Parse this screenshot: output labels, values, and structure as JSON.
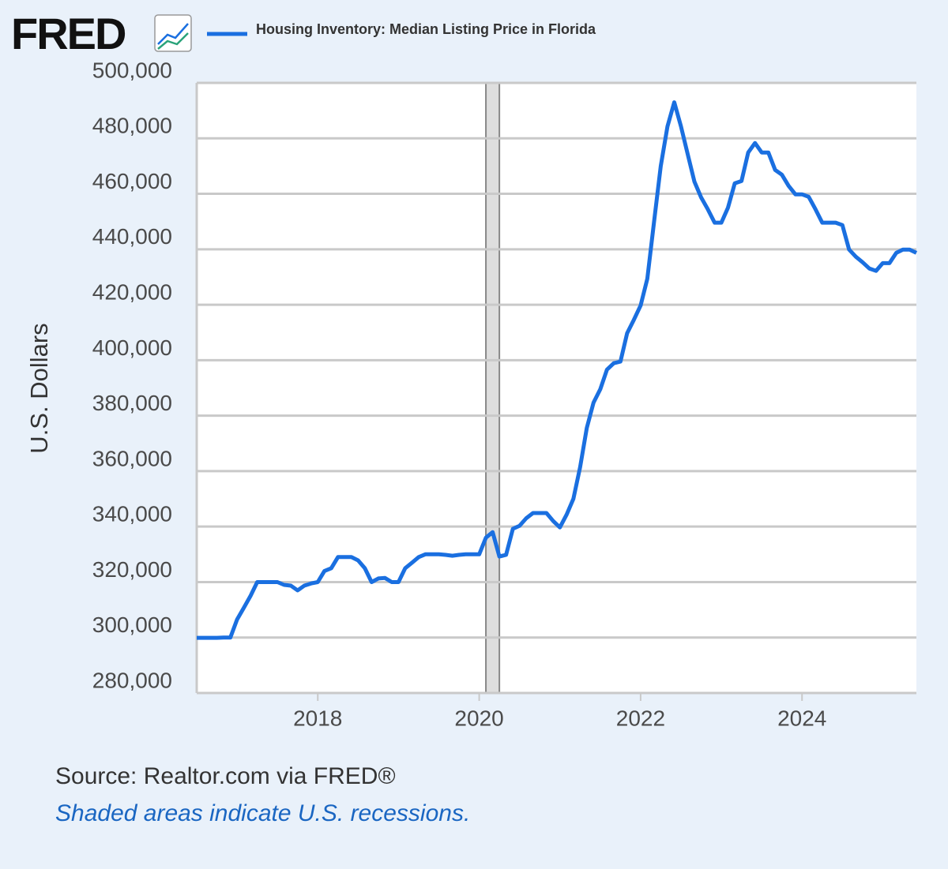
{
  "logo": "FRED",
  "source": "Source: Realtor.com via FRED®",
  "note": "Shaded areas indicate U.S. recessions.",
  "chart_data": {
    "type": "line",
    "y_label": "U.S. Dollars",
    "x": [
      2016.5,
      2016.583,
      2016.667,
      2016.75,
      2016.833,
      2016.917,
      2017,
      2017.083,
      2017.167,
      2017.25,
      2017.333,
      2017.417,
      2017.5,
      2017.583,
      2017.667,
      2017.75,
      2017.833,
      2017.917,
      2018,
      2018.083,
      2018.167,
      2018.25,
      2018.333,
      2018.417,
      2018.5,
      2018.583,
      2018.667,
      2018.75,
      2018.833,
      2018.917,
      2019,
      2019.083,
      2019.167,
      2019.25,
      2019.333,
      2019.417,
      2019.5,
      2019.583,
      2019.667,
      2019.75,
      2019.833,
      2019.917,
      2020,
      2020.083,
      2020.167,
      2020.25,
      2020.333,
      2020.417,
      2020.5,
      2020.583,
      2020.667,
      2020.75,
      2020.833,
      2020.917,
      2021,
      2021.083,
      2021.167,
      2021.25,
      2021.333,
      2021.417,
      2021.5,
      2021.583,
      2021.667,
      2021.75,
      2021.833,
      2021.917,
      2022,
      2022.083,
      2022.167,
      2022.25,
      2022.333,
      2022.417,
      2022.5,
      2022.583,
      2022.667,
      2022.75,
      2022.833,
      2022.917,
      2023,
      2023.083,
      2023.167,
      2023.25,
      2023.333,
      2023.417,
      2023.5,
      2023.583,
      2023.667,
      2023.75,
      2023.833,
      2023.917,
      2024,
      2024.083,
      2024.167,
      2024.25,
      2024.333,
      2024.417,
      2024.5,
      2024.583,
      2024.667,
      2024.75,
      2024.833,
      2024.917,
      2025,
      2025.083,
      2025.167,
      2025.25,
      2025.333,
      2025.417
    ],
    "series": [
      {
        "name": "Housing Inventory: Median Listing Price in Florida",
        "color": "#1a6fe0",
        "values": [
          299900,
          299900,
          299900,
          299900,
          300000,
          300000,
          306500,
          310700,
          315000,
          320000,
          320000,
          320000,
          320000,
          319000,
          318700,
          317000,
          318700,
          319500,
          320000,
          324000,
          325000,
          329000,
          329000,
          329000,
          327800,
          325000,
          320000,
          321300,
          321500,
          320000,
          320000,
          325000,
          327000,
          329000,
          330000,
          330000,
          330000,
          329800,
          329500,
          329800,
          330000,
          330000,
          330000,
          336000,
          338000,
          329200,
          329800,
          339200,
          340300,
          343000,
          344900,
          344900,
          344900,
          342000,
          339700,
          344300,
          350000,
          361400,
          375600,
          384700,
          389500,
          396600,
          398900,
          399500,
          409700,
          414600,
          419700,
          429400,
          450100,
          470000,
          484300,
          493000,
          484300,
          474300,
          464400,
          458700,
          454400,
          449600,
          449600,
          455000,
          463800,
          464600,
          474900,
          478300,
          474900,
          474900,
          468600,
          466900,
          462900,
          459800,
          459800,
          458900,
          454400,
          449600,
          449600,
          449600,
          448700,
          439900,
          437300,
          435300,
          433100,
          432200,
          435000,
          435000,
          438700,
          439900,
          439900,
          438700
        ]
      }
    ],
    "recessions": [
      [
        2020.083,
        2020.25
      ]
    ],
    "xlim": [
      2016.5,
      2025.417
    ],
    "xticks": [
      2018,
      2020,
      2022,
      2024
    ],
    "ylim": [
      280000,
      500000
    ],
    "yticks": [
      {
        "value": 280000,
        "label": "280,000"
      },
      {
        "value": 300000,
        "label": "300,000"
      },
      {
        "value": 320000,
        "label": "320,000"
      },
      {
        "value": 340000,
        "label": "340,000"
      },
      {
        "value": 360000,
        "label": "360,000"
      },
      {
        "value": 380000,
        "label": "380,000"
      },
      {
        "value": 400000,
        "label": "400,000"
      },
      {
        "value": 420000,
        "label": "420,000"
      },
      {
        "value": 440000,
        "label": "440,000"
      },
      {
        "value": 460000,
        "label": "460,000"
      },
      {
        "value": 480000,
        "label": "480,000"
      },
      {
        "value": 500000,
        "label": "500,000"
      }
    ],
    "grid": true
  }
}
